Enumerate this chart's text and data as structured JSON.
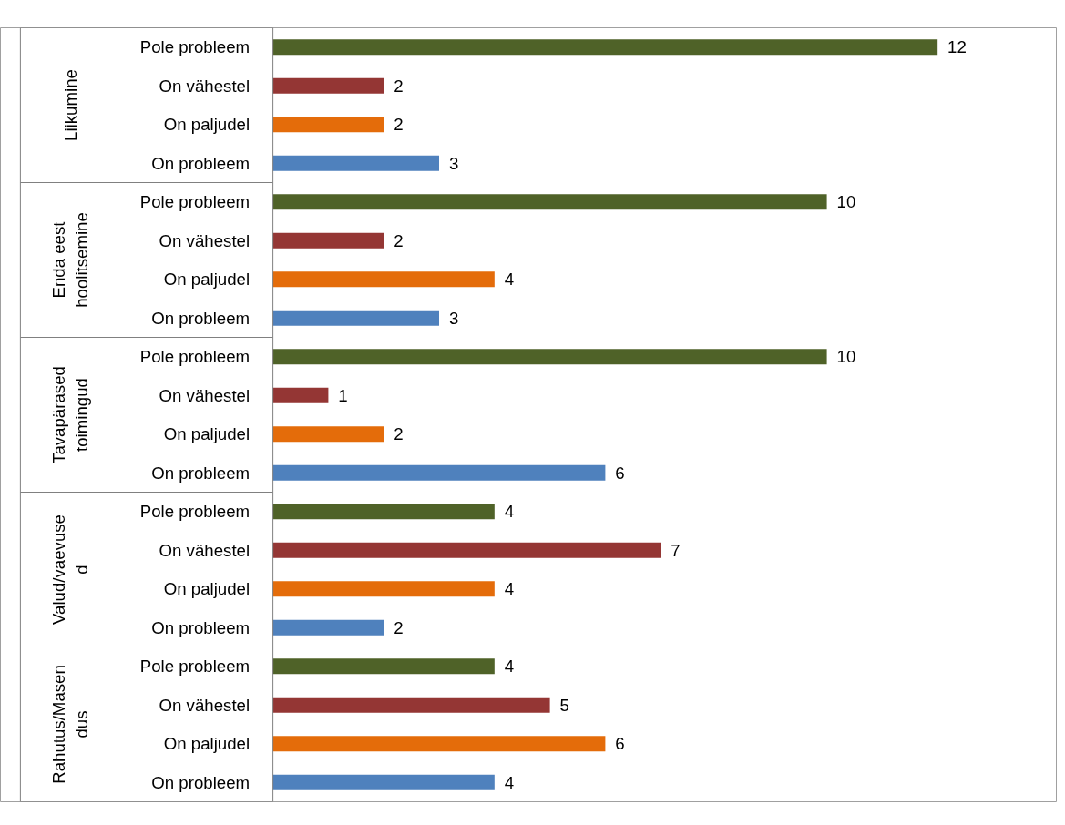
{
  "chart_data": {
    "type": "bar",
    "orientation": "horizontal",
    "categories": [
      "Pole probleem",
      "On vähestel",
      "On paljudel",
      "On probleem",
      "Pole probleem",
      "On vähestel",
      "On paljudel",
      "On probleem",
      "Pole probleem",
      "On vähestel",
      "On paljudel",
      "On probleem",
      "Pole probleem",
      "On vähestel",
      "On paljudel",
      "On probleem",
      "Pole probleem",
      "On vähestel",
      "On paljudel",
      "On probleem"
    ],
    "values": [
      12,
      2,
      2,
      3,
      10,
      2,
      4,
      3,
      10,
      1,
      2,
      6,
      4,
      7,
      4,
      2,
      4,
      5,
      6,
      4
    ],
    "colors": [
      "#4f6228",
      "#943634",
      "#e46c0a",
      "#4f81bd",
      "#4f6228",
      "#943634",
      "#e46c0a",
      "#4f81bd",
      "#4f6228",
      "#943634",
      "#e46c0a",
      "#4f81bd",
      "#4f6228",
      "#943634",
      "#e46c0a",
      "#4f81bd",
      "#4f6228",
      "#943634",
      "#e46c0a",
      "#4f81bd"
    ],
    "annotations": [
      "Liikumine",
      "Enda eest hoolitsemine",
      "Tavapärased toimingud",
      "Valud/vaevused",
      "Rahutus/Masendus"
    ],
    "data_labels": true,
    "grid": false
  }
}
